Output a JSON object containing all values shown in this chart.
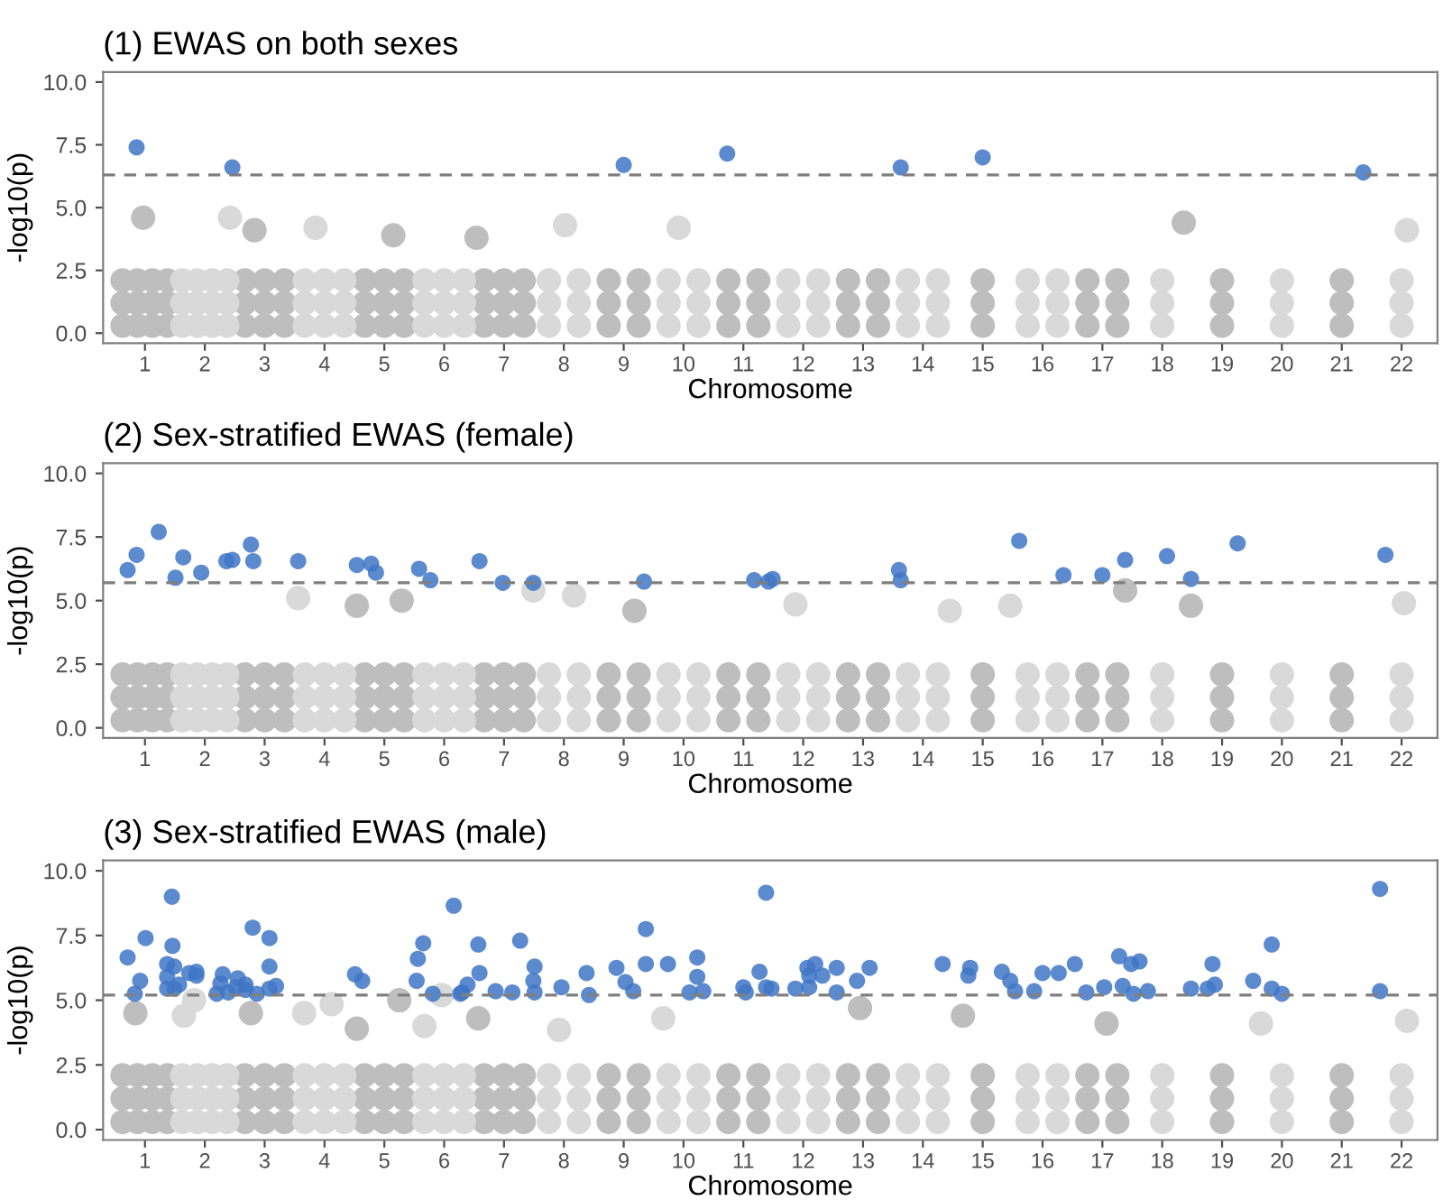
{
  "chart_data": [
    {
      "type": "scatter",
      "title": "(1) EWAS on both sexes",
      "xlabel": "Chromosome",
      "ylabel": "-log10(p)",
      "marker": "circle",
      "grid": false,
      "xlim": [
        0.3,
        22.6
      ],
      "ylim": [
        -0.4,
        10.4
      ],
      "xticks": [
        1,
        2,
        3,
        4,
        5,
        6,
        7,
        8,
        9,
        10,
        11,
        12,
        13,
        14,
        15,
        16,
        17,
        18,
        19,
        20,
        21,
        22
      ],
      "yticks": [
        {
          "value": 0,
          "label": "0.0"
        },
        {
          "value": 2.5,
          "label": "2.5"
        },
        {
          "value": 5,
          "label": "5.0"
        },
        {
          "value": 7.5,
          "label": "7.5"
        },
        {
          "value": 10,
          "label": "10.0"
        }
      ],
      "ref_lines": [
        {
          "axis": "y",
          "value": 6.3,
          "color": "#7f7f7f",
          "line_style": "dashed"
        }
      ],
      "series": [
        {
          "color": "#bebebe",
          "x": [
            0.625,
            0.875,
            1.125,
            1.375,
            2.67,
            3.0,
            3.33,
            4.67,
            5.0,
            5.33,
            6.67,
            7.0,
            7.33,
            8.75,
            9.25,
            10.75,
            11.25,
            12.75,
            13.25,
            15.0,
            16.75,
            17.25,
            19.0,
            21.0,
            0.625,
            0.875,
            1.125,
            1.375,
            2.67,
            3.0,
            3.33,
            4.67,
            5.0,
            5.33,
            6.67,
            7.0,
            7.33,
            8.75,
            9.25,
            10.75,
            11.25,
            12.75,
            13.25,
            15.0,
            16.75,
            17.25,
            19.0,
            21.0,
            0.625,
            0.875,
            1.125,
            1.375,
            2.67,
            3.0,
            3.33,
            4.67,
            5.0,
            5.33,
            6.67,
            7.0,
            7.33,
            8.75,
            9.25,
            10.75,
            11.25,
            12.75,
            13.25,
            15.0,
            16.75,
            17.25,
            19.0,
            21.0,
            0.97,
            2.83,
            5.15,
            6.54,
            18.36
          ],
          "values": [
            0.3,
            0.3,
            0.3,
            0.3,
            0.3,
            0.3,
            0.3,
            0.3,
            0.3,
            0.3,
            0.3,
            0.3,
            0.3,
            0.3,
            0.3,
            0.3,
            0.3,
            0.3,
            0.3,
            0.3,
            0.3,
            0.3,
            0.3,
            0.3,
            1.2,
            1.2,
            1.2,
            1.2,
            1.2,
            1.2,
            1.2,
            1.2,
            1.2,
            1.2,
            1.2,
            1.2,
            1.2,
            1.2,
            1.2,
            1.2,
            1.2,
            1.2,
            1.2,
            1.2,
            1.2,
            1.2,
            1.2,
            1.2,
            2.1,
            2.1,
            2.1,
            2.1,
            2.1,
            2.1,
            2.1,
            2.1,
            2.1,
            2.1,
            2.1,
            2.1,
            2.1,
            2.1,
            2.1,
            2.1,
            2.1,
            2.1,
            2.1,
            2.1,
            2.1,
            2.1,
            2.1,
            2.1,
            4.6,
            4.1,
            3.9,
            3.8,
            4.4
          ]
        },
        {
          "color": "#d9d9d9",
          "x": [
            1.625,
            1.875,
            2.125,
            2.375,
            3.67,
            4.0,
            4.33,
            5.67,
            6.0,
            6.33,
            7.75,
            8.25,
            9.75,
            10.25,
            11.75,
            12.25,
            13.75,
            14.25,
            15.75,
            16.25,
            18.0,
            20.0,
            22.0,
            1.625,
            1.875,
            2.125,
            2.375,
            3.67,
            4.0,
            4.33,
            5.67,
            6.0,
            6.33,
            7.75,
            8.25,
            9.75,
            10.25,
            11.75,
            12.25,
            13.75,
            14.25,
            15.75,
            16.25,
            18.0,
            20.0,
            22.0,
            1.625,
            1.875,
            2.125,
            2.375,
            3.67,
            4.0,
            4.33,
            5.67,
            6.0,
            6.33,
            7.75,
            8.25,
            9.75,
            10.25,
            11.75,
            12.25,
            13.75,
            14.25,
            15.75,
            16.25,
            18.0,
            20.0,
            22.0,
            2.42,
            3.85,
            8.02,
            9.92,
            22.09
          ],
          "values": [
            0.3,
            0.3,
            0.3,
            0.3,
            0.3,
            0.3,
            0.3,
            0.3,
            0.3,
            0.3,
            0.3,
            0.3,
            0.3,
            0.3,
            0.3,
            0.3,
            0.3,
            0.3,
            0.3,
            0.3,
            0.3,
            0.3,
            0.3,
            1.2,
            1.2,
            1.2,
            1.2,
            1.2,
            1.2,
            1.2,
            1.2,
            1.2,
            1.2,
            1.2,
            1.2,
            1.2,
            1.2,
            1.2,
            1.2,
            1.2,
            1.2,
            1.2,
            1.2,
            1.2,
            1.2,
            1.2,
            2.1,
            2.1,
            2.1,
            2.1,
            2.1,
            2.1,
            2.1,
            2.1,
            2.1,
            2.1,
            2.1,
            2.1,
            2.1,
            2.1,
            2.1,
            2.1,
            2.1,
            2.1,
            2.1,
            2.1,
            2.1,
            2.1,
            2.1,
            4.6,
            4.2,
            4.3,
            4.2,
            4.1
          ]
        },
        {
          "color": "#3f76c6",
          "x": [
            0.86,
            2.46,
            9.0,
            10.73,
            13.63,
            15.0,
            21.36
          ],
          "values": [
            7.4,
            6.6,
            6.7,
            7.15,
            6.6,
            7.0,
            6.4
          ]
        }
      ]
    },
    {
      "type": "scatter",
      "title": "(2) Sex-stratified EWAS (female)",
      "xlabel": "Chromosome",
      "ylabel": "-log10(p)",
      "marker": "circle",
      "grid": false,
      "xlim": [
        0.3,
        22.6
      ],
      "ylim": [
        -0.4,
        10.4
      ],
      "xticks": [
        1,
        2,
        3,
        4,
        5,
        6,
        7,
        8,
        9,
        10,
        11,
        12,
        13,
        14,
        15,
        16,
        17,
        18,
        19,
        20,
        21,
        22
      ],
      "yticks": [
        {
          "value": 0,
          "label": "0.0"
        },
        {
          "value": 2.5,
          "label": "2.5"
        },
        {
          "value": 5,
          "label": "5.0"
        },
        {
          "value": 7.5,
          "label": "7.5"
        },
        {
          "value": 10,
          "label": "10.0"
        }
      ],
      "ref_lines": [
        {
          "axis": "y",
          "value": 5.7,
          "color": "#7f7f7f",
          "line_style": "dashed"
        }
      ],
      "series": [
        {
          "color": "#bebebe",
          "x": [
            0.625,
            0.875,
            1.125,
            1.375,
            2.67,
            3.0,
            3.33,
            4.67,
            5.0,
            5.33,
            6.67,
            7.0,
            7.33,
            8.75,
            9.25,
            10.75,
            11.25,
            12.75,
            13.25,
            15.0,
            16.75,
            17.25,
            19.0,
            21.0,
            0.625,
            0.875,
            1.125,
            1.375,
            2.67,
            3.0,
            3.33,
            4.67,
            5.0,
            5.33,
            6.67,
            7.0,
            7.33,
            8.75,
            9.25,
            10.75,
            11.25,
            12.75,
            13.25,
            15.0,
            16.75,
            17.25,
            19.0,
            21.0,
            0.625,
            0.875,
            1.125,
            1.375,
            2.67,
            3.0,
            3.33,
            4.67,
            5.0,
            5.33,
            6.67,
            7.0,
            7.33,
            8.75,
            9.25,
            10.75,
            11.25,
            12.75,
            13.25,
            15.0,
            16.75,
            17.25,
            19.0,
            21.0,
            4.54,
            5.29,
            9.18,
            17.38,
            18.48
          ],
          "values": [
            0.3,
            0.3,
            0.3,
            0.3,
            0.3,
            0.3,
            0.3,
            0.3,
            0.3,
            0.3,
            0.3,
            0.3,
            0.3,
            0.3,
            0.3,
            0.3,
            0.3,
            0.3,
            0.3,
            0.3,
            0.3,
            0.3,
            0.3,
            0.3,
            1.2,
            1.2,
            1.2,
            1.2,
            1.2,
            1.2,
            1.2,
            1.2,
            1.2,
            1.2,
            1.2,
            1.2,
            1.2,
            1.2,
            1.2,
            1.2,
            1.2,
            1.2,
            1.2,
            1.2,
            1.2,
            1.2,
            1.2,
            1.2,
            2.1,
            2.1,
            2.1,
            2.1,
            2.1,
            2.1,
            2.1,
            2.1,
            2.1,
            2.1,
            2.1,
            2.1,
            2.1,
            2.1,
            2.1,
            2.1,
            2.1,
            2.1,
            2.1,
            2.1,
            2.1,
            2.1,
            2.1,
            2.1,
            4.8,
            5.0,
            4.6,
            5.4,
            4.8
          ]
        },
        {
          "color": "#d9d9d9",
          "x": [
            1.625,
            1.875,
            2.125,
            2.375,
            3.67,
            4.0,
            4.33,
            5.67,
            6.0,
            6.33,
            7.75,
            8.25,
            9.75,
            10.25,
            11.75,
            12.25,
            13.75,
            14.25,
            15.75,
            16.25,
            18.0,
            20.0,
            22.0,
            1.625,
            1.875,
            2.125,
            2.375,
            3.67,
            4.0,
            4.33,
            5.67,
            6.0,
            6.33,
            7.75,
            8.25,
            9.75,
            10.25,
            11.75,
            12.25,
            13.75,
            14.25,
            15.75,
            16.25,
            18.0,
            20.0,
            22.0,
            1.625,
            1.875,
            2.125,
            2.375,
            3.67,
            4.0,
            4.33,
            5.67,
            6.0,
            6.33,
            7.75,
            8.25,
            9.75,
            10.25,
            11.75,
            12.25,
            13.75,
            14.25,
            15.75,
            16.25,
            18.0,
            20.0,
            22.0,
            3.56,
            7.49,
            8.17,
            11.87,
            14.45,
            15.46,
            22.04
          ],
          "values": [
            0.3,
            0.3,
            0.3,
            0.3,
            0.3,
            0.3,
            0.3,
            0.3,
            0.3,
            0.3,
            0.3,
            0.3,
            0.3,
            0.3,
            0.3,
            0.3,
            0.3,
            0.3,
            0.3,
            0.3,
            0.3,
            0.3,
            0.3,
            1.2,
            1.2,
            1.2,
            1.2,
            1.2,
            1.2,
            1.2,
            1.2,
            1.2,
            1.2,
            1.2,
            1.2,
            1.2,
            1.2,
            1.2,
            1.2,
            1.2,
            1.2,
            1.2,
            1.2,
            1.2,
            1.2,
            1.2,
            2.1,
            2.1,
            2.1,
            2.1,
            2.1,
            2.1,
            2.1,
            2.1,
            2.1,
            2.1,
            2.1,
            2.1,
            2.1,
            2.1,
            2.1,
            2.1,
            2.1,
            2.1,
            2.1,
            2.1,
            2.1,
            2.1,
            2.1,
            5.1,
            5.4,
            5.2,
            4.85,
            4.6,
            4.8,
            4.9
          ]
        },
        {
          "color": "#3f76c6",
          "x": [
            0.71,
            0.86,
            1.23,
            1.51,
            1.64,
            1.94,
            2.36,
            2.46,
            2.77,
            2.81,
            3.56,
            4.54,
            4.78,
            4.86,
            5.58,
            5.77,
            6.59,
            6.98,
            7.49,
            9.34,
            11.18,
            11.42,
            11.49,
            13.6,
            13.63,
            15.61,
            16.35,
            17.0,
            17.38,
            18.08,
            18.48,
            19.26,
            21.73
          ],
          "values": [
            6.2,
            6.8,
            7.7,
            5.9,
            6.7,
            6.1,
            6.55,
            6.6,
            7.2,
            6.55,
            6.55,
            6.4,
            6.45,
            6.1,
            6.25,
            5.8,
            6.55,
            5.7,
            5.7,
            5.75,
            5.8,
            5.75,
            5.85,
            6.2,
            5.8,
            7.35,
            6.0,
            6.0,
            6.6,
            6.75,
            5.85,
            7.25,
            6.8
          ]
        }
      ]
    },
    {
      "type": "scatter",
      "title": "(3) Sex-stratified EWAS (male)",
      "xlabel": "Chromosome",
      "ylabel": "-log10(p)",
      "marker": "circle",
      "grid": false,
      "xlim": [
        0.3,
        22.6
      ],
      "ylim": [
        -0.4,
        10.4
      ],
      "xticks": [
        1,
        2,
        3,
        4,
        5,
        6,
        7,
        8,
        9,
        10,
        11,
        12,
        13,
        14,
        15,
        16,
        17,
        18,
        19,
        20,
        21,
        22
      ],
      "yticks": [
        {
          "value": 0,
          "label": "0.0"
        },
        {
          "value": 2.5,
          "label": "2.5"
        },
        {
          "value": 5,
          "label": "5.0"
        },
        {
          "value": 7.5,
          "label": "7.5"
        },
        {
          "value": 10,
          "label": "10.0"
        }
      ],
      "ref_lines": [
        {
          "axis": "y",
          "value": 5.2,
          "color": "#7f7f7f",
          "line_style": "dashed"
        }
      ],
      "series": [
        {
          "color": "#bebebe",
          "x": [
            0.625,
            0.875,
            1.125,
            1.375,
            2.67,
            3.0,
            3.33,
            4.67,
            5.0,
            5.33,
            6.67,
            7.0,
            7.33,
            8.75,
            9.25,
            10.75,
            11.25,
            12.75,
            13.25,
            15.0,
            16.75,
            17.25,
            19.0,
            21.0,
            0.625,
            0.875,
            1.125,
            1.375,
            2.67,
            3.0,
            3.33,
            4.67,
            5.0,
            5.33,
            6.67,
            7.0,
            7.33,
            8.75,
            9.25,
            10.75,
            11.25,
            12.75,
            13.25,
            15.0,
            16.75,
            17.25,
            19.0,
            21.0,
            0.625,
            0.875,
            1.125,
            1.375,
            2.67,
            3.0,
            3.33,
            4.67,
            5.0,
            5.33,
            6.67,
            7.0,
            7.33,
            8.75,
            9.25,
            10.75,
            11.25,
            12.75,
            13.25,
            15.0,
            16.75,
            17.25,
            19.0,
            21.0,
            0.84,
            2.77,
            4.54,
            5.25,
            6.57,
            12.95,
            14.67,
            17.07
          ],
          "values": [
            0.3,
            0.3,
            0.3,
            0.3,
            0.3,
            0.3,
            0.3,
            0.3,
            0.3,
            0.3,
            0.3,
            0.3,
            0.3,
            0.3,
            0.3,
            0.3,
            0.3,
            0.3,
            0.3,
            0.3,
            0.3,
            0.3,
            0.3,
            0.3,
            1.2,
            1.2,
            1.2,
            1.2,
            1.2,
            1.2,
            1.2,
            1.2,
            1.2,
            1.2,
            1.2,
            1.2,
            1.2,
            1.2,
            1.2,
            1.2,
            1.2,
            1.2,
            1.2,
            1.2,
            1.2,
            1.2,
            1.2,
            1.2,
            2.1,
            2.1,
            2.1,
            2.1,
            2.1,
            2.1,
            2.1,
            2.1,
            2.1,
            2.1,
            2.1,
            2.1,
            2.1,
            2.1,
            2.1,
            2.1,
            2.1,
            2.1,
            2.1,
            2.1,
            2.1,
            2.1,
            2.1,
            2.1,
            4.5,
            4.5,
            3.9,
            5.0,
            4.3,
            4.7,
            4.4,
            4.1
          ]
        },
        {
          "color": "#d9d9d9",
          "x": [
            1.625,
            1.875,
            2.125,
            2.375,
            3.67,
            4.0,
            4.33,
            5.67,
            6.0,
            6.33,
            7.75,
            8.25,
            9.75,
            10.25,
            11.75,
            12.25,
            13.75,
            14.25,
            15.75,
            16.25,
            18.0,
            20.0,
            22.0,
            1.625,
            1.875,
            2.125,
            2.375,
            3.67,
            4.0,
            4.33,
            5.67,
            6.0,
            6.33,
            7.75,
            8.25,
            9.75,
            10.25,
            11.75,
            12.25,
            13.75,
            14.25,
            15.75,
            16.25,
            18.0,
            20.0,
            22.0,
            1.625,
            1.875,
            2.125,
            2.375,
            3.67,
            4.0,
            4.33,
            5.67,
            6.0,
            6.33,
            7.75,
            8.25,
            9.75,
            10.25,
            11.75,
            12.25,
            13.75,
            14.25,
            15.75,
            16.25,
            18.0,
            20.0,
            22.0,
            1.65,
            1.82,
            3.66,
            4.12,
            5.67,
            5.96,
            7.92,
            9.66,
            19.65,
            22.09
          ],
          "values": [
            0.3,
            0.3,
            0.3,
            0.3,
            0.3,
            0.3,
            0.3,
            0.3,
            0.3,
            0.3,
            0.3,
            0.3,
            0.3,
            0.3,
            0.3,
            0.3,
            0.3,
            0.3,
            0.3,
            0.3,
            0.3,
            0.3,
            0.3,
            1.2,
            1.2,
            1.2,
            1.2,
            1.2,
            1.2,
            1.2,
            1.2,
            1.2,
            1.2,
            1.2,
            1.2,
            1.2,
            1.2,
            1.2,
            1.2,
            1.2,
            1.2,
            1.2,
            1.2,
            1.2,
            1.2,
            1.2,
            2.1,
            2.1,
            2.1,
            2.1,
            2.1,
            2.1,
            2.1,
            2.1,
            2.1,
            2.1,
            2.1,
            2.1,
            2.1,
            2.1,
            2.1,
            2.1,
            2.1,
            2.1,
            2.1,
            2.1,
            2.1,
            2.1,
            2.1,
            4.4,
            5.0,
            4.5,
            4.85,
            4.0,
            5.2,
            3.85,
            4.3,
            4.1,
            4.2
          ]
        },
        {
          "color": "#3f76c6",
          "x": [
            0.71,
            0.83,
            0.92,
            1.01,
            1.37,
            1.37,
            1.37,
            1.45,
            1.46,
            1.49,
            1.49,
            1.57,
            1.74,
            1.86,
            1.86,
            2.2,
            2.26,
            2.3,
            2.39,
            2.55,
            2.52,
            2.68,
            2.68,
            2.8,
            2.87,
            3.08,
            3.08,
            3.08,
            3.19,
            4.51,
            4.63,
            5.54,
            5.56,
            5.65,
            5.81,
            6.16,
            6.27,
            6.3,
            6.39,
            6.57,
            6.59,
            6.86,
            7.14,
            7.27,
            7.49,
            7.51,
            7.51,
            7.96,
            8.38,
            8.42,
            8.88,
            9.03,
            9.16,
            9.37,
            9.37,
            9.74,
            10.23,
            10.23,
            10.1,
            10.33,
            11.0,
            11.04,
            11.27,
            11.38,
            11.38,
            11.47,
            11.87,
            12.07,
            12.1,
            12.1,
            12.2,
            12.32,
            12.56,
            12.56,
            12.9,
            13.11,
            14.33,
            14.79,
            14.76,
            15.32,
            15.46,
            15.54,
            15.86,
            16.0,
            16.27,
            16.54,
            16.73,
            17.03,
            17.28,
            17.34,
            17.48,
            17.52,
            17.62,
            17.76,
            18.48,
            18.76,
            18.84,
            18.88,
            19.52,
            19.83,
            20.0,
            21.64,
            21.64,
            19.83
          ],
          "values": [
            6.65,
            5.25,
            5.75,
            7.4,
            6.4,
            5.9,
            5.45,
            9.0,
            7.1,
            6.3,
            5.45,
            5.6,
            6.05,
            6.1,
            5.95,
            5.25,
            5.65,
            6.0,
            5.3,
            5.85,
            5.5,
            5.6,
            5.4,
            7.8,
            5.25,
            7.4,
            6.3,
            5.45,
            5.55,
            6.0,
            5.75,
            5.75,
            6.6,
            7.2,
            5.25,
            8.65,
            5.25,
            5.3,
            5.6,
            7.15,
            6.05,
            5.35,
            5.3,
            7.3,
            5.75,
            6.3,
            5.3,
            5.5,
            6.05,
            5.2,
            6.25,
            5.7,
            5.35,
            7.75,
            6.4,
            6.4,
            6.65,
            5.9,
            5.3,
            5.35,
            5.5,
            5.3,
            6.1,
            9.15,
            5.5,
            5.45,
            5.45,
            6.25,
            5.95,
            5.5,
            6.4,
            5.95,
            6.25,
            5.3,
            5.75,
            6.25,
            6.4,
            6.25,
            5.95,
            6.1,
            5.75,
            5.35,
            5.35,
            6.05,
            6.05,
            6.4,
            5.3,
            5.5,
            6.7,
            5.55,
            6.4,
            5.25,
            6.5,
            5.35,
            5.45,
            5.45,
            6.4,
            5.6,
            5.75,
            7.15,
            5.25,
            9.3,
            5.35,
            5.45
          ]
        }
      ]
    }
  ]
}
